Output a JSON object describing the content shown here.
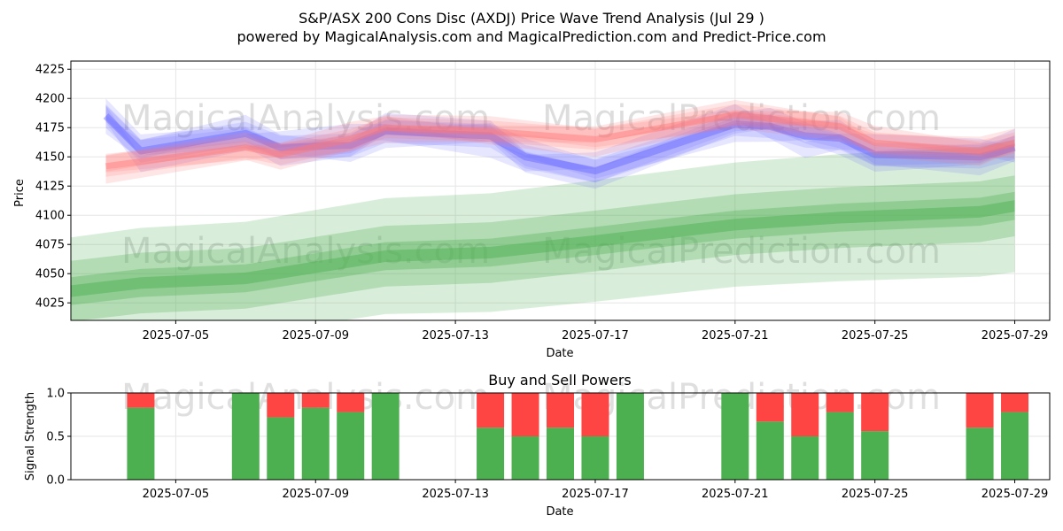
{
  "chart_data": [
    {
      "type": "line",
      "title": "S&P/ASX 200 Cons Disc (AXDJ) Price Wave Trend Analysis (Jul 29 )",
      "subtitle": "powered by MagicalAnalysis.com and MagicalPrediction.com and Predict-Price.com",
      "xlabel": "Date",
      "ylabel": "Price",
      "ylim": [
        4010,
        4232
      ],
      "yticks": [
        4025,
        4050,
        4075,
        4100,
        4125,
        4150,
        4175,
        4200,
        4225
      ],
      "xticks": [
        "2025-07-05",
        "2025-07-09",
        "2025-07-13",
        "2025-07-17",
        "2025-07-21",
        "2025-07-25",
        "2025-07-29"
      ],
      "xlim": [
        "2025-07-02",
        "2025-07-30"
      ],
      "grid": true,
      "watermarks": [
        "MagicalAnalysis.com",
        "MagicalPrediction.com"
      ],
      "series": [
        {
          "name": "Blue wave band",
          "color": "#6666ff",
          "x": [
            "2025-07-03",
            "2025-07-04",
            "2025-07-07",
            "2025-07-08",
            "2025-07-10",
            "2025-07-11",
            "2025-07-14",
            "2025-07-15",
            "2025-07-17",
            "2025-07-21",
            "2025-07-22",
            "2025-07-23",
            "2025-07-24",
            "2025-07-25",
            "2025-07-28",
            "2025-07-29"
          ],
          "values": [
            4185,
            4155,
            4170,
            4158,
            4160,
            4172,
            4168,
            4150,
            4138,
            4178,
            4176,
            4168,
            4166,
            4152,
            4150,
            4158
          ]
        },
        {
          "name": "Red wave band",
          "color": "#ff7777",
          "x": [
            "2025-07-03",
            "2025-07-07",
            "2025-07-08",
            "2025-07-10",
            "2025-07-11",
            "2025-07-14",
            "2025-07-17",
            "2025-07-21",
            "2025-07-24",
            "2025-07-25",
            "2025-07-28",
            "2025-07-29"
          ],
          "values": [
            4142,
            4158,
            4152,
            4165,
            4175,
            4172,
            4165,
            4186,
            4176,
            4162,
            4155,
            4162
          ]
        },
        {
          "name": "Green trend band",
          "color": "#4caf50",
          "x": [
            "2025-07-02",
            "2025-07-04",
            "2025-07-07",
            "2025-07-11",
            "2025-07-14",
            "2025-07-17",
            "2025-07-21",
            "2025-07-24",
            "2025-07-28",
            "2025-07-29"
          ],
          "values": [
            4035,
            4042,
            4046,
            4065,
            4068,
            4078,
            4092,
            4098,
            4103,
            4108
          ]
        }
      ]
    },
    {
      "type": "bar",
      "title": "Buy and Sell Powers",
      "xlabel": "Date",
      "ylabel": "Signal Strength",
      "ylim": [
        0,
        1
      ],
      "yticks": [
        "0.0",
        "0.5",
        "1.0"
      ],
      "xticks": [
        "2025-07-05",
        "2025-07-09",
        "2025-07-13",
        "2025-07-17",
        "2025-07-21",
        "2025-07-25",
        "2025-07-29"
      ],
      "xlim": [
        "2025-07-02",
        "2025-07-30"
      ],
      "categories": [
        "2025-07-04",
        "2025-07-07",
        "2025-07-08",
        "2025-07-09",
        "2025-07-10",
        "2025-07-11",
        "2025-07-14",
        "2025-07-15",
        "2025-07-16",
        "2025-07-17",
        "2025-07-18",
        "2025-07-21",
        "2025-07-22",
        "2025-07-23",
        "2025-07-24",
        "2025-07-25",
        "2025-07-28",
        "2025-07-29"
      ],
      "series": [
        {
          "name": "Buy",
          "color": "#4caf50",
          "values": [
            0.83,
            1.0,
            0.72,
            0.83,
            0.78,
            1.0,
            0.6,
            0.5,
            0.6,
            0.5,
            1.0,
            1.0,
            0.67,
            0.5,
            0.78,
            0.56,
            0.6,
            0.78
          ]
        },
        {
          "name": "Sell",
          "color": "#ff4444",
          "values": [
            0.17,
            0.0,
            0.28,
            0.17,
            0.22,
            0.0,
            0.4,
            0.5,
            0.4,
            0.5,
            0.0,
            0.0,
            0.33,
            0.5,
            0.22,
            0.44,
            0.4,
            0.22
          ]
        }
      ]
    }
  ]
}
